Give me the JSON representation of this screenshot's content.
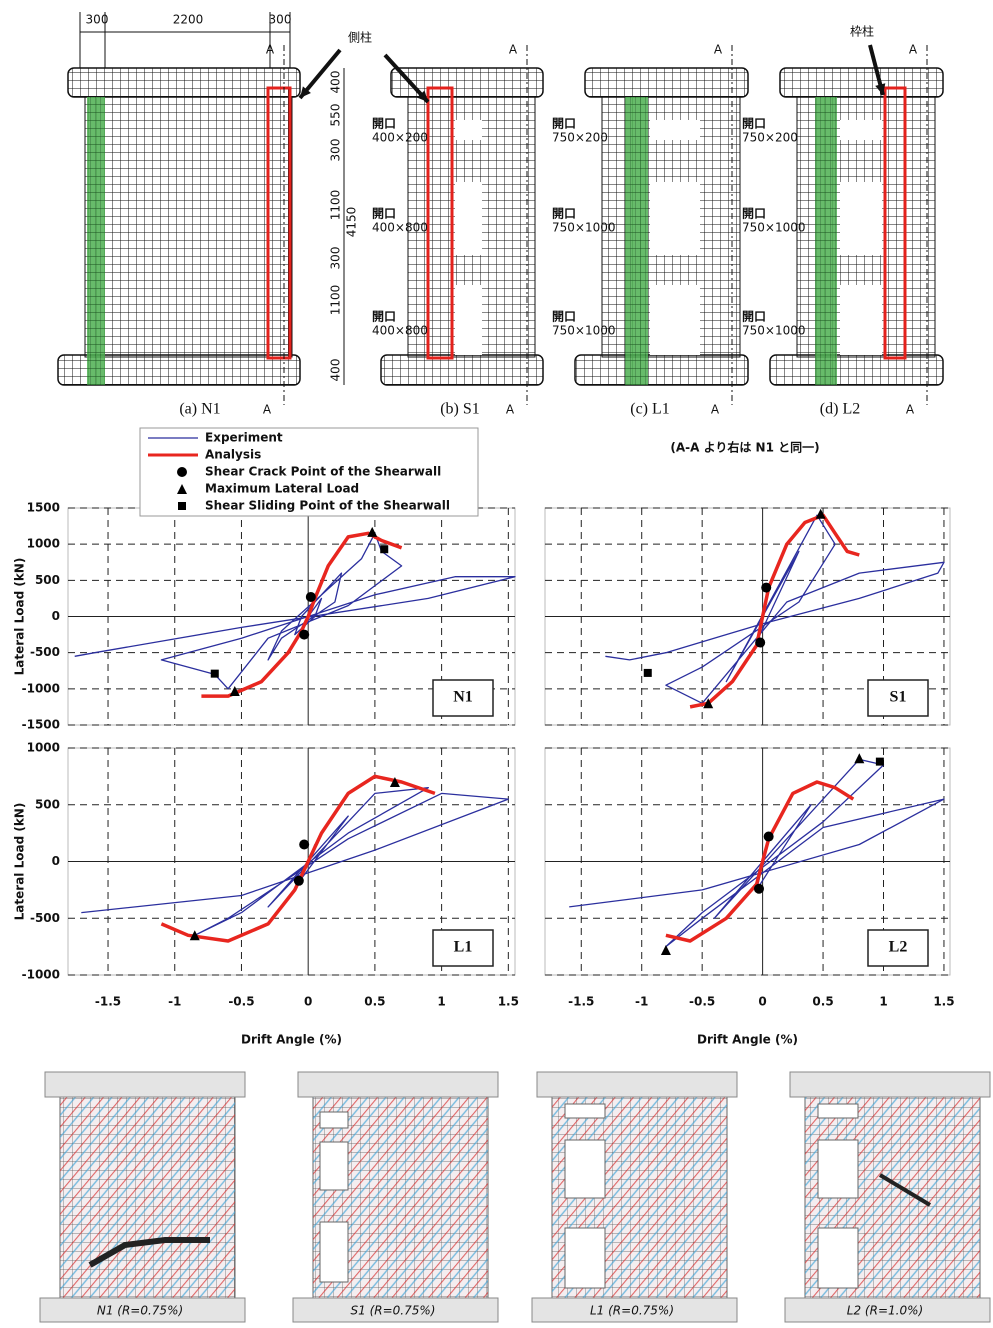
{
  "drawings": {
    "dims_top": [
      "300",
      "2200",
      "300"
    ],
    "dims_side": [
      "400",
      "550",
      "300",
      "1100",
      "4150",
      "300",
      "1100",
      "400"
    ],
    "callouts": [
      "側柱",
      "枠柱"
    ],
    "panels": [
      {
        "caption": "(a) N1",
        "section_marks": [
          "A",
          "A"
        ],
        "openings": []
      },
      {
        "caption": "(b) S1",
        "section_marks": [
          "A",
          "A"
        ],
        "openings": [
          {
            "title": "開口",
            "size": "400×200"
          },
          {
            "title": "開口",
            "size": "400×800"
          },
          {
            "title": "開口",
            "size": "400×800"
          }
        ]
      },
      {
        "caption": "(c) L1",
        "section_marks": [
          "A",
          "A"
        ],
        "openings": [
          {
            "title": "開口",
            "size": "750×200"
          },
          {
            "title": "開口",
            "size": "750×1000"
          },
          {
            "title": "開口",
            "size": "750×1000"
          }
        ]
      },
      {
        "caption": "(d) L2",
        "section_marks": [
          "A",
          "A"
        ],
        "openings": [
          {
            "title": "開口",
            "size": "750×200"
          },
          {
            "title": "開口",
            "size": "750×1000"
          },
          {
            "title": "開口",
            "size": "750×1000"
          }
        ]
      }
    ],
    "note": "(A-A より右は N1 と同一)"
  },
  "chart_data": [
    {
      "type": "line",
      "label": "N1",
      "ylabel": "Lateral Load (kN)",
      "legend": "top-left",
      "grid": "dashed",
      "xlim": [
        -1.8,
        1.55
      ],
      "ylim": [
        -1500,
        1500
      ],
      "xticks": [
        -1.5,
        -1,
        -0.5,
        0,
        0.5,
        1,
        1.5
      ],
      "xtick_labels": false,
      "yticks": [
        -1500,
        -1000,
        -500,
        0,
        500,
        1000,
        1500
      ],
      "ytick_labels": true,
      "series": [
        {
          "name": "Experiment",
          "color": "#2b2f9e",
          "x": [
            0,
            0.1,
            0.05,
            -0.1,
            -0.05,
            0.25,
            0.2,
            -0.2,
            -0.3,
            -0.2,
            0.4,
            0.5,
            0.55,
            0.7,
            0.3,
            -0.3,
            -0.6,
            -0.7,
            -1.1,
            -0.5,
            0.5,
            1.1,
            1.55,
            0.9,
            -0.5,
            -1.6,
            -1.75
          ],
          "values": [
            0,
            250,
            0,
            -250,
            0,
            600,
            200,
            -300,
            -600,
            -200,
            800,
            1150,
            900,
            700,
            150,
            -300,
            -1000,
            -800,
            -600,
            -300,
            300,
            550,
            550,
            250,
            -150,
            -500,
            -550
          ]
        },
        {
          "name": "Analysis",
          "color": "#e8261f",
          "x": [
            -0.8,
            -0.6,
            -0.35,
            -0.15,
            -0.05,
            0,
            0.05,
            0.15,
            0.3,
            0.45,
            0.55,
            0.7
          ],
          "values": [
            -1100,
            -1100,
            -900,
            -500,
            -200,
            0,
            250,
            700,
            1100,
            1150,
            1050,
            950
          ]
        },
        {
          "name": "Shear Crack Point of the Shearwall",
          "color": "#000000",
          "marker": "circle",
          "x": [
            0.02,
            -0.03
          ],
          "values": [
            270,
            -250
          ]
        },
        {
          "name": "Maximum Lateral Load",
          "color": "#000000",
          "marker": "triangle",
          "x": [
            0.48,
            -0.55
          ],
          "values": [
            1170,
            -1030
          ]
        },
        {
          "name": "Shear Sliding Point of the Shearwall",
          "color": "#000000",
          "marker": "square",
          "x": [
            0.57,
            -0.7
          ],
          "values": [
            930,
            -790
          ]
        }
      ]
    },
    {
      "type": "line",
      "label": "S1",
      "grid": "dashed",
      "xlim": [
        -1.8,
        1.55
      ],
      "ylim": [
        -1500,
        1500
      ],
      "xticks": [
        -1.5,
        -1,
        -0.5,
        0,
        0.5,
        1,
        1.5
      ],
      "xtick_labels": false,
      "yticks": [
        -1500,
        -1000,
        -500,
        0,
        500,
        1000,
        1500
      ],
      "ytick_labels": false,
      "series": [
        {
          "color": "#2b2f9e",
          "x": [
            0,
            0.05,
            -0.05,
            0.3,
            -0.3,
            0.45,
            0.6,
            0.3,
            -0.5,
            -0.8,
            -0.5,
            0.2,
            0.8,
            1.5,
            1.45,
            0.8,
            0,
            -0.8,
            -1.1,
            -1.3
          ],
          "values": [
            0,
            400,
            -350,
            900,
            -900,
            1400,
            1000,
            200,
            -700,
            -950,
            -1200,
            200,
            600,
            750,
            600,
            250,
            -100,
            -500,
            -600,
            -550
          ]
        },
        {
          "color": "#e8261f",
          "x": [
            -0.6,
            -0.45,
            -0.25,
            -0.05,
            0,
            0.05,
            0.2,
            0.35,
            0.5,
            0.6,
            0.7,
            0.8
          ],
          "values": [
            -1250,
            -1200,
            -900,
            -400,
            0,
            400,
            1000,
            1300,
            1400,
            1150,
            900,
            850
          ]
        },
        {
          "color": "#000000",
          "marker": "circle",
          "x": [
            0.03,
            -0.02
          ],
          "values": [
            400,
            -360
          ]
        },
        {
          "color": "#000000",
          "marker": "triangle",
          "x": [
            0.48,
            -0.45
          ],
          "values": [
            1420,
            -1200
          ]
        },
        {
          "color": "#000000",
          "marker": "square",
          "x": [
            -0.95
          ],
          "values": [
            -780
          ]
        }
      ]
    },
    {
      "type": "line",
      "label": "L1",
      "ylabel": "Lateral Load (kN)",
      "xlabel": "Drift Angle (%)",
      "grid": "dashed",
      "xlim": [
        -1.8,
        1.55
      ],
      "ylim": [
        -1000,
        1000
      ],
      "xticks": [
        -1.5,
        -1,
        -0.5,
        0,
        0.5,
        1,
        1.5
      ],
      "xtick_labels": true,
      "yticks": [
        -1000,
        -500,
        0,
        500,
        1000
      ],
      "ytick_labels": true,
      "series": [
        {
          "color": "#2b2f9e",
          "x": [
            0,
            0.05,
            -0.05,
            0.3,
            -0.3,
            0.5,
            0.9,
            0.3,
            -0.5,
            -0.85,
            -0.6,
            0.3,
            1.0,
            1.5,
            0.5,
            -0.5,
            -1.7
          ],
          "values": [
            0,
            150,
            -150,
            400,
            -400,
            600,
            650,
            250,
            -450,
            -650,
            -500,
            200,
            600,
            550,
            100,
            -300,
            -450
          ]
        },
        {
          "color": "#e8261f",
          "x": [
            -1.1,
            -0.9,
            -0.6,
            -0.3,
            -0.1,
            0,
            0.1,
            0.3,
            0.5,
            0.7,
            0.95
          ],
          "values": [
            -550,
            -650,
            -700,
            -550,
            -250,
            0,
            250,
            600,
            750,
            700,
            600
          ]
        },
        {
          "color": "#000000",
          "marker": "circle",
          "x": [
            -0.03,
            -0.07
          ],
          "values": [
            150,
            -170
          ]
        },
        {
          "color": "#000000",
          "marker": "triangle",
          "x": [
            0.65,
            -0.85
          ],
          "values": [
            700,
            -650
          ]
        }
      ]
    },
    {
      "type": "line",
      "label": "L2",
      "xlabel": "Drift Angle (%)",
      "grid": "dashed",
      "xlim": [
        -1.8,
        1.55
      ],
      "ylim": [
        -1000,
        1000
      ],
      "xticks": [
        -1.5,
        -1,
        -0.5,
        0,
        0.5,
        1,
        1.5
      ],
      "xtick_labels": true,
      "yticks": [
        -1000,
        -500,
        0,
        500,
        1000
      ],
      "ytick_labels": false,
      "series": [
        {
          "color": "#2b2f9e",
          "x": [
            0,
            0.05,
            -0.05,
            0.4,
            -0.4,
            0.8,
            1.0,
            0.5,
            -0.5,
            -0.8,
            -0.5,
            0.5,
            1.5,
            0.8,
            -0.5,
            -1.6
          ],
          "values": [
            0,
            200,
            -250,
            500,
            -500,
            900,
            850,
            350,
            -450,
            -750,
            -500,
            300,
            550,
            150,
            -250,
            -400
          ]
        },
        {
          "color": "#e8261f",
          "x": [
            -0.8,
            -0.6,
            -0.3,
            -0.05,
            0,
            0.05,
            0.25,
            0.45,
            0.6,
            0.75
          ],
          "values": [
            -650,
            -700,
            -500,
            -200,
            0,
            200,
            600,
            700,
            650,
            550
          ]
        },
        {
          "color": "#000000",
          "marker": "circle",
          "x": [
            0.05,
            -0.03
          ],
          "values": [
            220,
            -240
          ]
        },
        {
          "color": "#000000",
          "marker": "triangle",
          "x": [
            0.8,
            -0.8
          ],
          "values": [
            910,
            -780
          ]
        },
        {
          "color": "#000000",
          "marker": "square",
          "x": [
            0.97
          ],
          "values": [
            880
          ]
        }
      ]
    }
  ],
  "crack_patterns": [
    "N1 (R=0.75%)",
    "S1 (R=0.75%)",
    "L1 (R=0.75%)",
    "L2 (R=1.0%)"
  ]
}
